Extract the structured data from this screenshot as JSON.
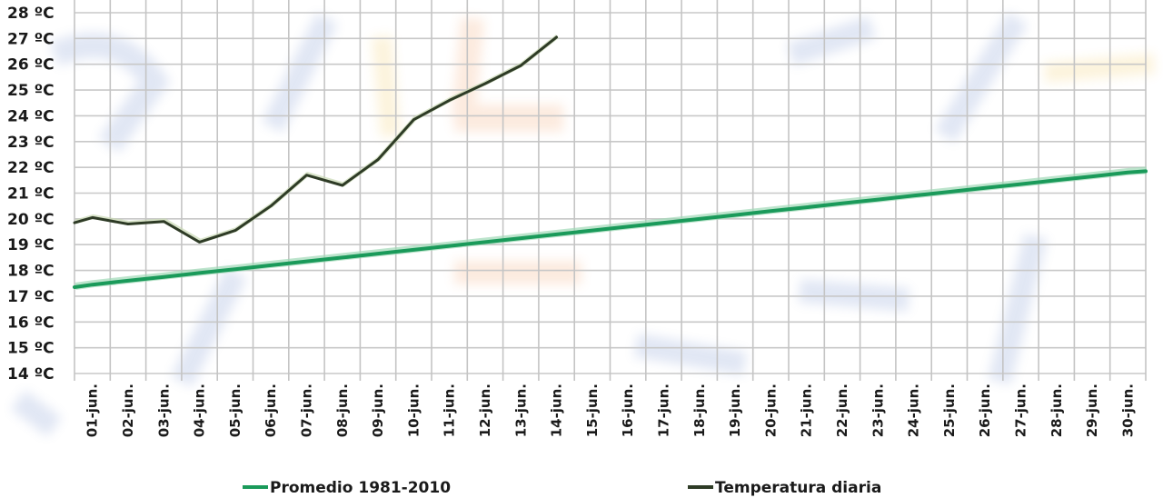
{
  "chart_data": {
    "type": "line",
    "title": "",
    "xlabel": "",
    "ylabel": "",
    "ylim": [
      14,
      28
    ],
    "y_ticks": [
      "14 ºC",
      "15 ºC",
      "16 ºC",
      "17 ºC",
      "18 ºC",
      "19 ºC",
      "20 ºC",
      "21 ºC",
      "22 ºC",
      "23 ºC",
      "24 ºC",
      "25 ºC",
      "26 ºC",
      "27 ºC",
      "28 ºC"
    ],
    "y_tick_values": [
      14,
      15,
      16,
      17,
      18,
      19,
      20,
      21,
      22,
      23,
      24,
      25,
      26,
      27,
      28
    ],
    "grid": true,
    "legend_position": "bottom",
    "categories": [
      "01-jun.",
      "02-jun.",
      "03-jun.",
      "04-jun.",
      "05-jun.",
      "06-jun.",
      "07-jun.",
      "08-jun.",
      "09-jun.",
      "10-jun.",
      "11-jun.",
      "12-jun.",
      "13-jun.",
      "14-jun.",
      "15-jun.",
      "16-jun.",
      "17-jun.",
      "18-jun.",
      "19-jun.",
      "20-jun.",
      "21-jun.",
      "22-jun.",
      "23-jun.",
      "24-jun.",
      "25-jun.",
      "26-jun.",
      "27-jun.",
      "28-jun.",
      "29-jun.",
      "30-jun."
    ],
    "series": [
      {
        "name": "Promedio 1981-2010",
        "color": "#1a9a5a",
        "start_edge_value": 17.35,
        "values": [
          17.45,
          17.6,
          17.75,
          17.9,
          18.05,
          18.2,
          18.35,
          18.5,
          18.65,
          18.8,
          18.95,
          19.1,
          19.25,
          19.4,
          19.55,
          19.7,
          19.85,
          20.0,
          20.15,
          20.3,
          20.45,
          20.6,
          20.75,
          20.9,
          21.05,
          21.2,
          21.35,
          21.5,
          21.65,
          21.8
        ]
      },
      {
        "name": "Temperatura diaria",
        "color": "#2e3b26",
        "start_edge_value": 19.85,
        "values": [
          20.05,
          19.8,
          19.9,
          19.1,
          19.55,
          20.5,
          21.7,
          21.3,
          22.3,
          23.85,
          24.6,
          25.25,
          25.95,
          27.05,
          null,
          null,
          null,
          null,
          null,
          null,
          null,
          null,
          null,
          null,
          null,
          null,
          null,
          null,
          null,
          null
        ]
      }
    ]
  },
  "legend": {
    "items": [
      {
        "label": "Promedio 1981-2010",
        "color": "#1a9a5a"
      },
      {
        "label": "Temperatura diaria",
        "color": "#2e3b26"
      }
    ]
  }
}
